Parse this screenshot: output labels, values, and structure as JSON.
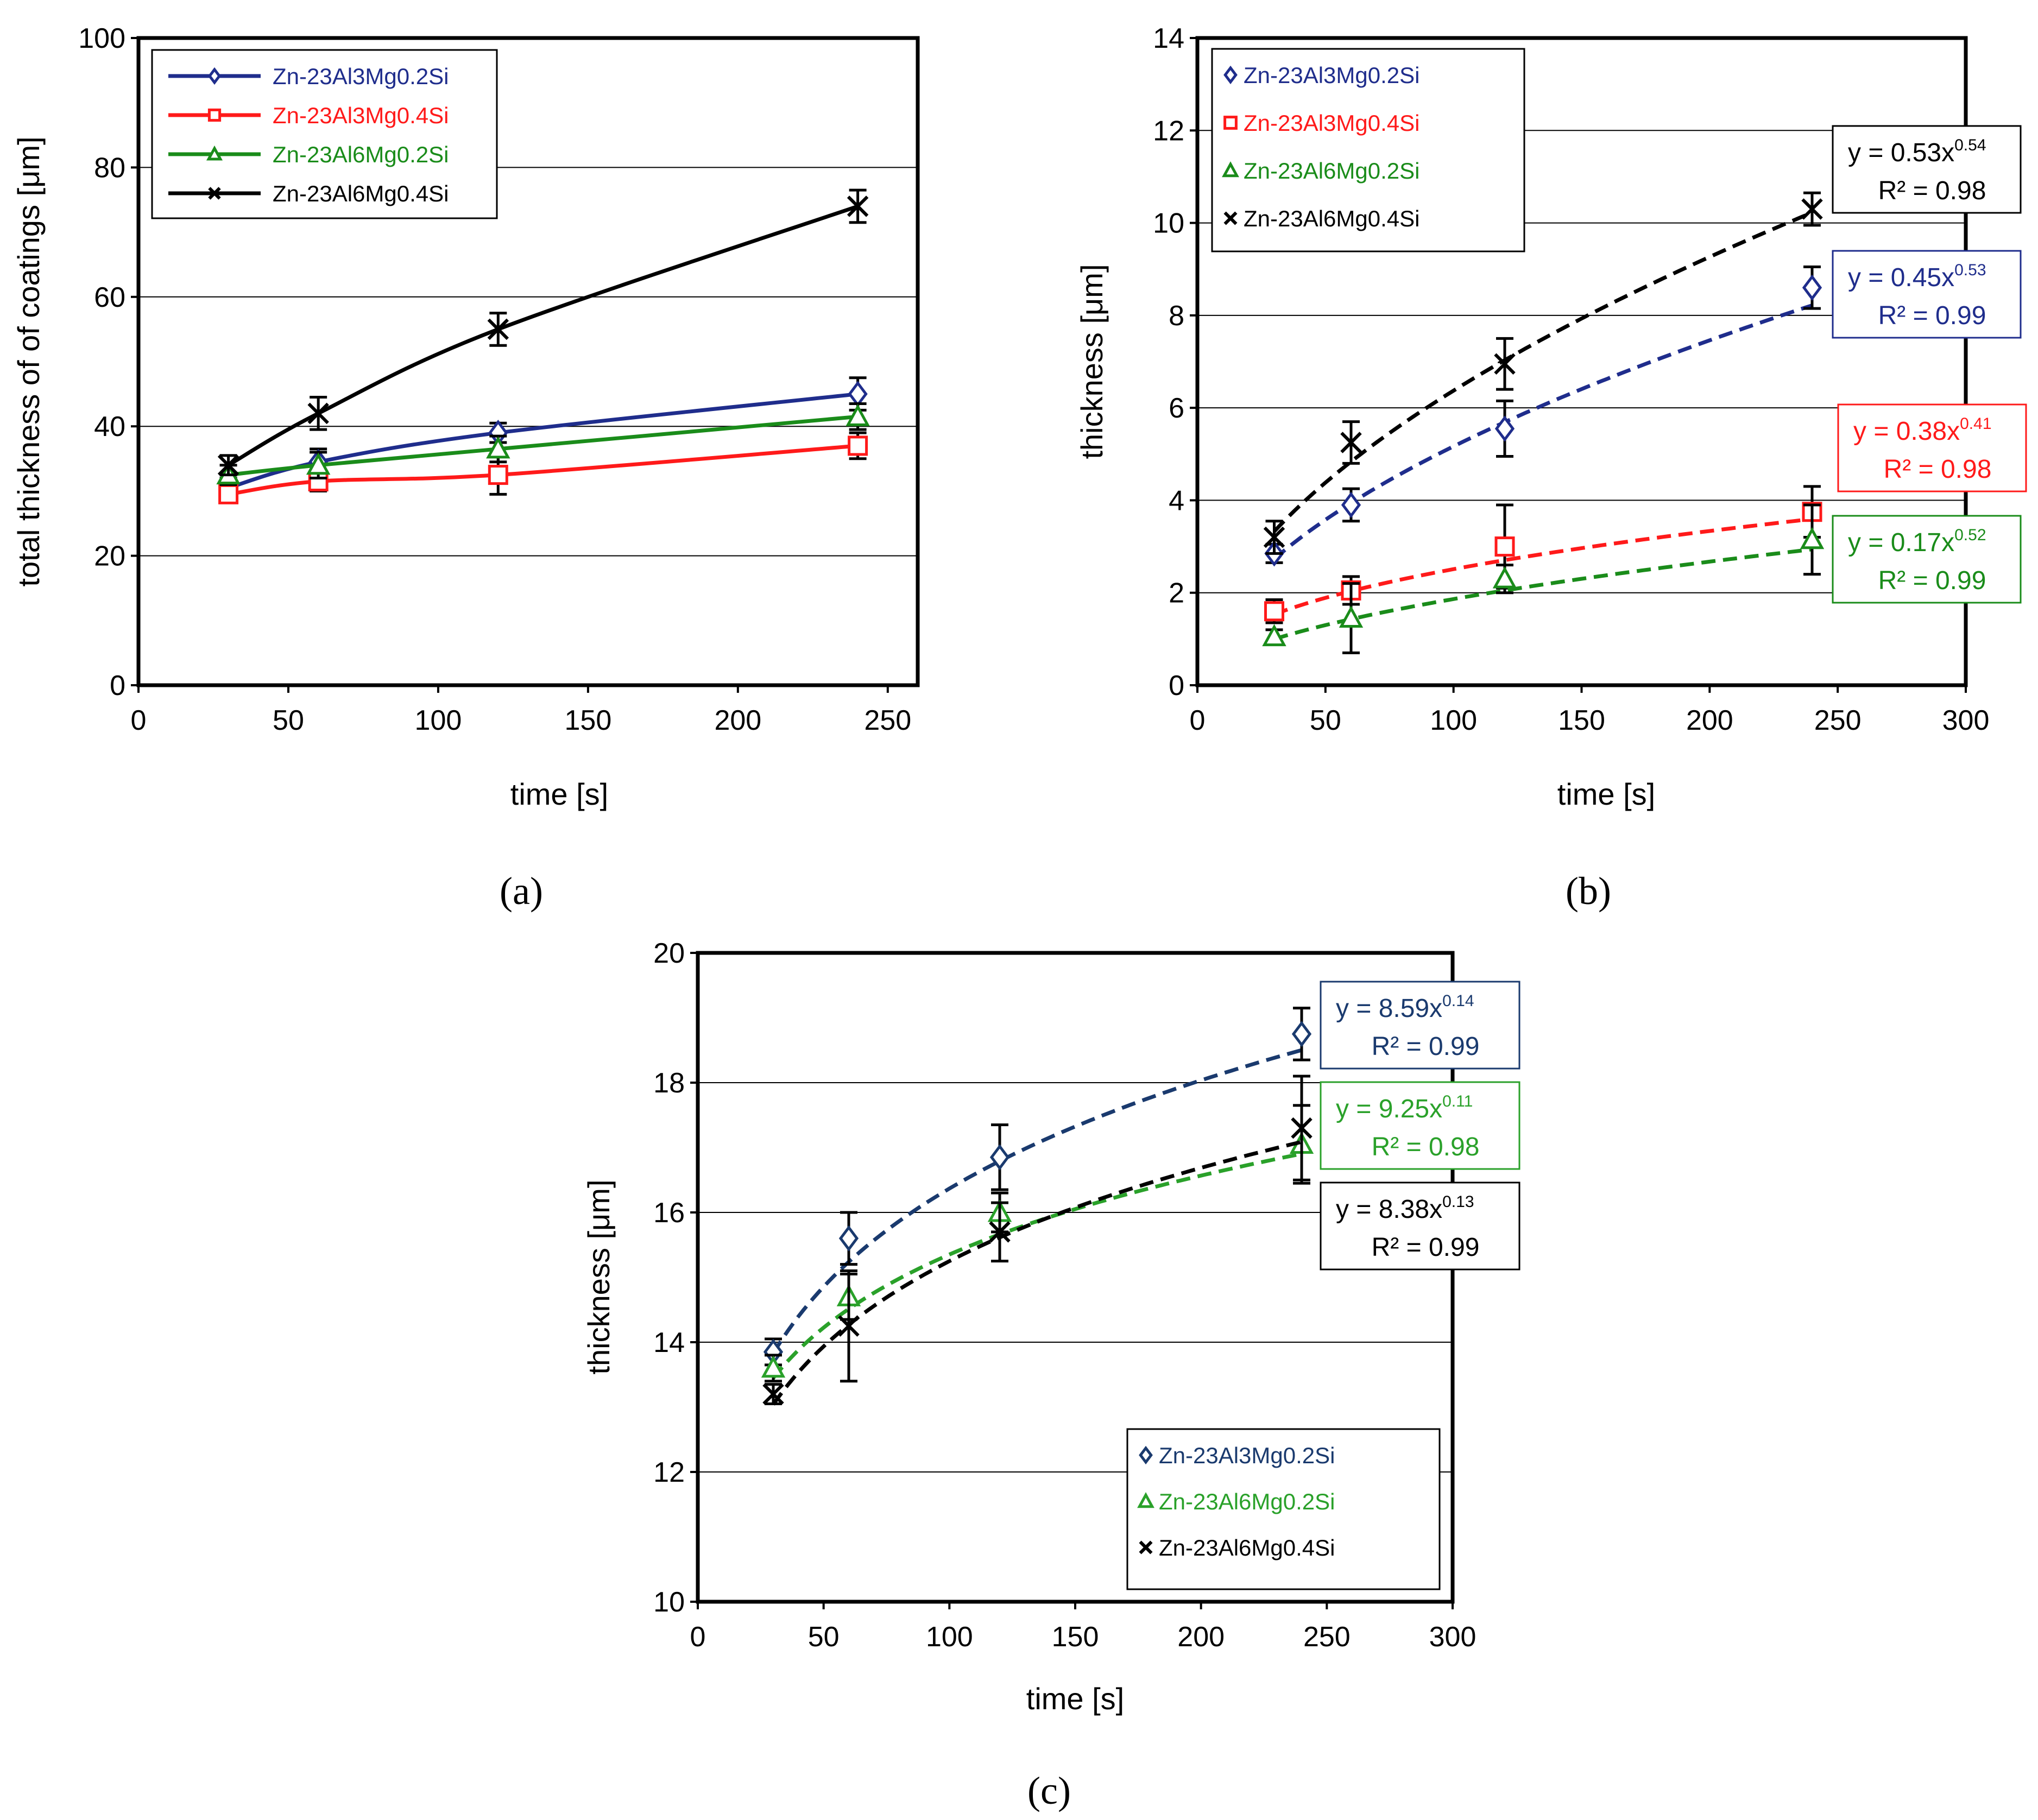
{
  "figure": {
    "panel_labels": [
      "(a)",
      "(b)",
      "(c)"
    ]
  },
  "colors": {
    "blue": "#1f2d8c",
    "red": "#ff1a1a",
    "green": "#1a8c1a",
    "black": "#000000",
    "navy": "#1a3a6e",
    "green_c": "#2aa12a"
  },
  "chart_data": [
    {
      "id": "a",
      "type": "line",
      "title": "",
      "xlabel": "time [s]",
      "ylabel": "total thickness of of coatings [μm]",
      "xlim": [
        0,
        260
      ],
      "ylim": [
        0,
        100
      ],
      "xticks": [
        0,
        50,
        100,
        150,
        200,
        250
      ],
      "yticks": [
        0,
        20,
        40,
        60,
        80,
        100
      ],
      "grid": "horizontal",
      "legend_position": "top-left",
      "legend_style": "line",
      "series": [
        {
          "name": "Zn-23Al3Mg0.2Si",
          "color": "#1f2d8c",
          "marker": "diamond",
          "x": [
            30,
            60,
            120,
            240
          ],
          "y": [
            30.5,
            34.5,
            39,
            45
          ],
          "err": [
            1.5,
            2,
            1.5,
            2.5
          ]
        },
        {
          "name": "Zn-23Al3Mg0.4Si",
          "color": "#ff1a1a",
          "marker": "square",
          "x": [
            30,
            60,
            120,
            240
          ],
          "y": [
            29.5,
            31.5,
            32.5,
            37
          ],
          "err": [
            1,
            1.5,
            3,
            2
          ]
        },
        {
          "name": "Zn-23Al6Mg0.2Si",
          "color": "#1a8c1a",
          "marker": "triangle",
          "x": [
            30,
            60,
            120,
            240
          ],
          "y": [
            32.5,
            34,
            36.5,
            41.5
          ],
          "err": [
            1.5,
            2,
            2,
            2
          ]
        },
        {
          "name": "Zn-23Al6Mg0.4Si",
          "color": "#000000",
          "marker": "x",
          "x": [
            30,
            60,
            120,
            240
          ],
          "y": [
            34,
            42,
            55,
            74
          ],
          "err": [
            1.5,
            2.5,
            2.5,
            2.5
          ]
        }
      ]
    },
    {
      "id": "b",
      "type": "scatter",
      "title": "",
      "xlabel": "time [s]",
      "ylabel": "thickness [μm]",
      "xlim": [
        0,
        300
      ],
      "ylim": [
        0,
        14
      ],
      "xticks": [
        0,
        50,
        100,
        150,
        200,
        250,
        300
      ],
      "yticks": [
        0,
        2,
        4,
        6,
        8,
        10,
        12,
        14
      ],
      "grid": "horizontal",
      "legend_position": "top-left",
      "legend_style": "marker",
      "series": [
        {
          "name": "Zn-23Al3Mg0.2Si",
          "color": "#1f2d8c",
          "marker": "diamond",
          "x": [
            30,
            60,
            120,
            240
          ],
          "y": [
            2.85,
            3.9,
            5.55,
            8.6
          ],
          "err": [
            0.2,
            0.35,
            0.6,
            0.45
          ],
          "fit": {
            "a": 0.45,
            "b": 0.53,
            "eq": "y = 0.45x",
            "exp": "0.53",
            "r2": "R² = 0.99"
          }
        },
        {
          "name": "Zn-23Al3Mg0.4Si",
          "color": "#ff1a1a",
          "marker": "square",
          "x": [
            30,
            60,
            120,
            240
          ],
          "y": [
            1.6,
            2.05,
            3.0,
            3.75
          ],
          "err": [
            0.25,
            0.3,
            0.9,
            0.55
          ],
          "fit": {
            "a": 0.38,
            "b": 0.41,
            "eq": "y = 0.38x",
            "exp": "0.41",
            "r2": "R² = 0.98"
          }
        },
        {
          "name": "Zn-23Al6Mg0.2Si",
          "color": "#1a8c1a",
          "marker": "triangle",
          "x": [
            30,
            60,
            120,
            240
          ],
          "y": [
            1.05,
            1.45,
            2.3,
            3.15
          ],
          "err": [
            0.15,
            0.75,
            0.3,
            0.75
          ],
          "fit": {
            "a": 0.17,
            "b": 0.52,
            "eq": "y = 0.17x",
            "exp": "0.52",
            "r2": "R² = 0.99"
          }
        },
        {
          "name": "Zn-23Al6Mg0.4Si",
          "color": "#000000",
          "marker": "x",
          "x": [
            30,
            60,
            120,
            240
          ],
          "y": [
            3.2,
            5.25,
            6.95,
            10.3
          ],
          "err": [
            0.35,
            0.45,
            0.55,
            0.35
          ],
          "fit": {
            "a": 0.53,
            "b": 0.54,
            "eq": "y = 0.53x",
            "exp": "0.54",
            "r2": "R² = 0.98"
          }
        }
      ]
    },
    {
      "id": "c",
      "type": "scatter",
      "title": "",
      "xlabel": "time [s]",
      "ylabel": "thickness [μm]",
      "xlim": [
        0,
        300
      ],
      "ylim": [
        10,
        20
      ],
      "xticks": [
        0,
        50,
        100,
        150,
        200,
        250,
        300
      ],
      "yticks": [
        10,
        12,
        14,
        16,
        18,
        20
      ],
      "grid": "horizontal",
      "legend_position": "bottom-right",
      "legend_style": "marker",
      "series": [
        {
          "name": "Zn-23Al3Mg0.2Si",
          "color": "#1a3a6e",
          "marker": "diamond",
          "x": [
            30,
            60,
            120,
            240
          ],
          "y": [
            13.85,
            15.6,
            16.85,
            18.75
          ],
          "err": [
            0.2,
            0.4,
            0.5,
            0.4
          ],
          "fit": {
            "a": 8.59,
            "b": 0.14,
            "eq": "y = 8.59x",
            "exp": "0.14",
            "r2": "R² = 0.99"
          }
        },
        {
          "name": "Zn-23Al6Mg0.2Si",
          "color": "#2aa12a",
          "marker": "triangle",
          "x": [
            30,
            60,
            120,
            240
          ],
          "y": [
            13.6,
            14.7,
            16.0,
            17.05
          ],
          "err": [
            0.2,
            0.35,
            0.3,
            0.6
          ],
          "fit": {
            "a": 9.25,
            "b": 0.11,
            "eq": "y = 9.25x",
            "exp": "0.11",
            "r2": "R² = 0.98"
          }
        },
        {
          "name": "Zn-23Al6Mg0.4Si",
          "color": "#000000",
          "marker": "x",
          "x": [
            30,
            60,
            120,
            240
          ],
          "y": [
            13.2,
            14.25,
            15.7,
            17.3
          ],
          "err": [
            0.15,
            0.85,
            0.45,
            0.8
          ],
          "fit": {
            "a": 8.38,
            "b": 0.13,
            "eq": "y = 8.38x",
            "exp": "0.13",
            "r2": "R² = 0.99"
          }
        }
      ]
    }
  ]
}
